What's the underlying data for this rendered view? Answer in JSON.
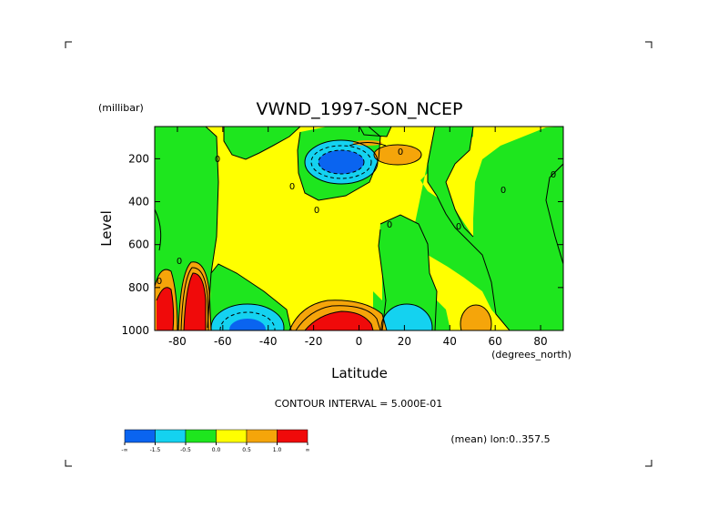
{
  "chart_data": {
    "type": "contour",
    "title": "VWND_1997-SON_NCEP",
    "xlabel": "Latitude",
    "xunit": "(degrees_north)",
    "ylabel": "Level",
    "yunit": "(millibar)",
    "xlim": [
      -90,
      90
    ],
    "ylim": [
      1000,
      50
    ],
    "xticks": [
      -80,
      -60,
      -40,
      -20,
      0,
      20,
      40,
      60,
      80
    ],
    "yticks": [
      200,
      400,
      600,
      800,
      1000
    ],
    "contour_interval": "CONTOUR INTERVAL = 5.000E-01",
    "annotation": "(mean) lon:0..357.5",
    "colorbar": {
      "colors": [
        "#0a64f0",
        "#14d2f0",
        "#1ee61e",
        "#ffff00",
        "#f5a50a",
        "#f00a0a"
      ],
      "labels": [
        "-∞",
        "-1.5",
        "-0.5",
        "0.0",
        "0.5",
        "1.0",
        "∞"
      ]
    },
    "contour_labels": [
      "0",
      "0",
      "0",
      "0",
      "0",
      "0",
      "0",
      "0",
      "0",
      "0"
    ]
  }
}
